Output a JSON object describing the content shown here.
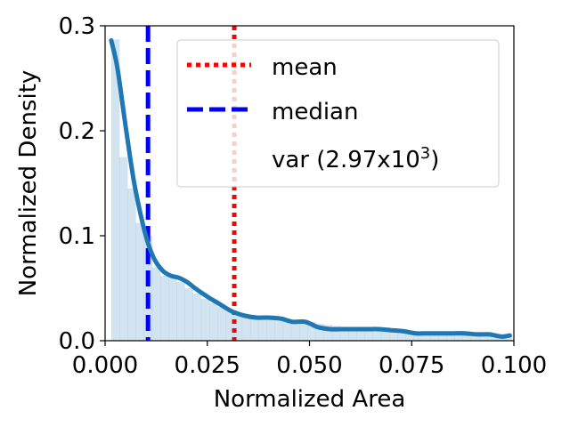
{
  "chart_data": {
    "type": "area",
    "xlabel": "Normalized Area",
    "ylabel": "Normalized Density",
    "xlim": [
      0.0,
      0.1
    ],
    "ylim": [
      0.0,
      0.3
    ],
    "xticks": [
      "0.000",
      "0.025",
      "0.050",
      "0.075",
      "0.100"
    ],
    "xtick_values": [
      0.0,
      0.025,
      0.05,
      0.075,
      0.1
    ],
    "yticks": [
      "0.0",
      "0.1",
      "0.2",
      "0.3"
    ],
    "ytick_values": [
      0.0,
      0.1,
      0.2,
      0.3
    ],
    "grid": false,
    "legend_position": "top-right",
    "histogram": {
      "bin_edges": [
        0.0015,
        0.0035,
        0.0055,
        0.0075,
        0.0095,
        0.0115,
        0.0135,
        0.0155,
        0.0175,
        0.0195,
        0.0215,
        0.0235,
        0.0255,
        0.0275,
        0.0295,
        0.0315,
        0.0335,
        0.0355,
        0.0375,
        0.0395,
        0.0415,
        0.0435,
        0.0455,
        0.0475,
        0.0495,
        0.0515,
        0.0535,
        0.0555,
        0.0575,
        0.0595,
        0.0615,
        0.0635,
        0.0655,
        0.0675,
        0.0695,
        0.0715,
        0.0735,
        0.0755,
        0.0775,
        0.0795,
        0.0815,
        0.0835,
        0.0855,
        0.0875,
        0.0895,
        0.0915,
        0.0935,
        0.0955,
        0.0975,
        0.0995
      ],
      "densities": [
        0.287,
        0.175,
        0.145,
        0.112,
        0.1,
        0.07,
        0.062,
        0.06,
        0.056,
        0.05,
        0.045,
        0.04,
        0.036,
        0.032,
        0.028,
        0.026,
        0.024,
        0.023,
        0.022,
        0.022,
        0.021,
        0.02,
        0.019,
        0.018,
        0.018,
        0.016,
        0.015,
        0.014,
        0.013,
        0.012,
        0.012,
        0.012,
        0.011,
        0.011,
        0.01,
        0.009,
        0.008,
        0.008,
        0.007,
        0.007,
        0.007,
        0.007,
        0.007,
        0.006,
        0.006,
        0.006,
        0.006,
        0.005,
        0.005
      ],
      "color": "#1f77b4",
      "opacity": 0.2
    },
    "density_curve": {
      "x": [
        0.0015,
        0.003,
        0.005,
        0.007,
        0.009,
        0.0105,
        0.012,
        0.014,
        0.016,
        0.018,
        0.02,
        0.022,
        0.025,
        0.028,
        0.031,
        0.034,
        0.037,
        0.04,
        0.043,
        0.046,
        0.049,
        0.052,
        0.055,
        0.058,
        0.061,
        0.064,
        0.067,
        0.07,
        0.073,
        0.076,
        0.079,
        0.082,
        0.085,
        0.088,
        0.091,
        0.094,
        0.097,
        0.099
      ],
      "y": [
        0.286,
        0.26,
        0.205,
        0.153,
        0.115,
        0.093,
        0.078,
        0.067,
        0.062,
        0.06,
        0.056,
        0.05,
        0.042,
        0.035,
        0.028,
        0.024,
        0.022,
        0.022,
        0.021,
        0.018,
        0.018,
        0.013,
        0.011,
        0.011,
        0.011,
        0.011,
        0.011,
        0.01,
        0.009,
        0.007,
        0.007,
        0.007,
        0.007,
        0.007,
        0.006,
        0.006,
        0.004,
        0.005
      ],
      "color": "#1f77b4"
    },
    "series": [
      {
        "name": "mean",
        "value": 0.0316,
        "color": "#ff0000",
        "style": "dotted"
      },
      {
        "name": "median",
        "value": 0.0105,
        "color": "#0000ff",
        "style": "dashed"
      }
    ],
    "legend": [
      {
        "label": "mean",
        "color": "#ff0000",
        "style": "dotted"
      },
      {
        "label": "median",
        "color": "#0000ff",
        "style": "dashed"
      },
      {
        "label": "var (2.97x10",
        "sup": "3",
        "suffix": ")",
        "color": "#ffffff",
        "style": "none"
      }
    ]
  }
}
